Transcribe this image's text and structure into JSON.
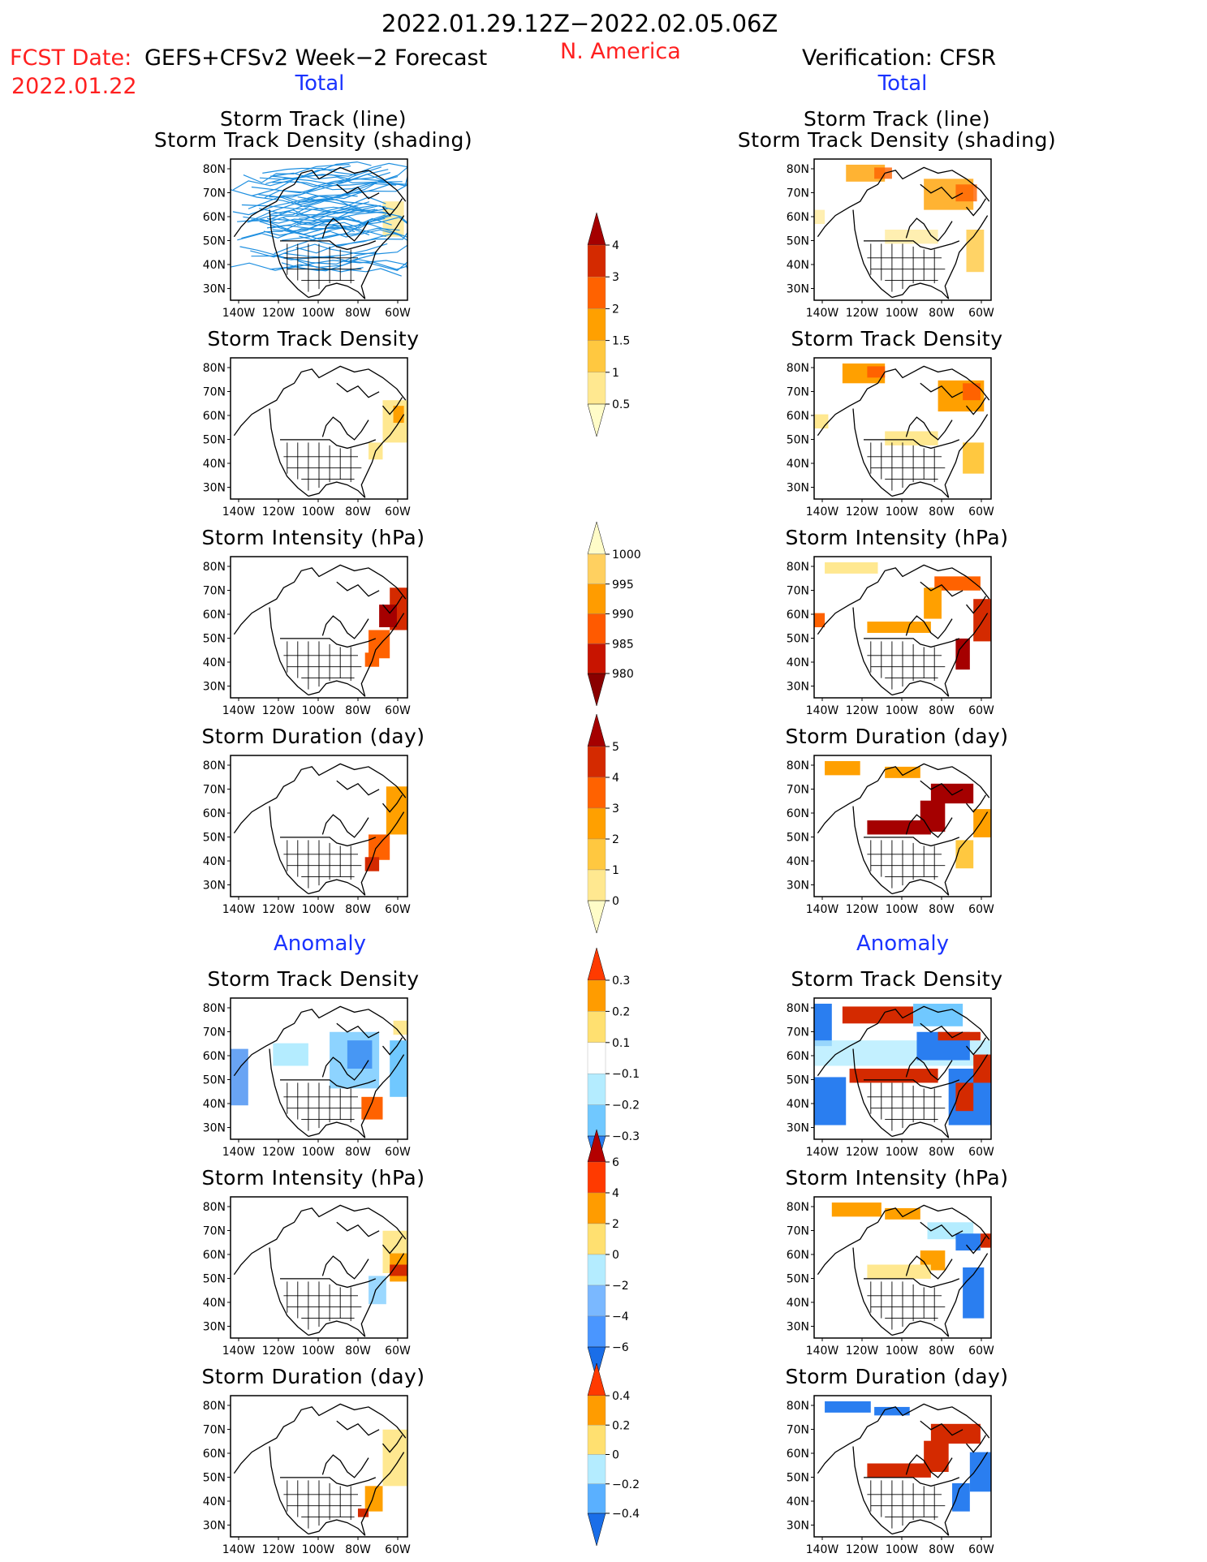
{
  "header": {
    "date_range": "2022.01.29.12Z−2022.02.05.06Z",
    "region": "N. America",
    "fcst_label": "FCST Date:",
    "fcst_model": "GEFS+CFSv2 Week−2 Forecast",
    "fcst_date": "2022.01.22",
    "verification": "Verification: CFSR"
  },
  "sections": {
    "left_total": "Total",
    "right_total": "Total",
    "left_anomaly": "Anomaly",
    "right_anomaly": "Anomaly"
  },
  "panel_titles": {
    "track_line": "Storm Track (line)",
    "track_shading": "Storm Track Density (shading)",
    "density": "Storm Track Density",
    "intensity": "Storm Intensity (hPa)",
    "duration": "Storm Duration (day)"
  },
  "axes": {
    "lat_labels": [
      "80N",
      "70N",
      "60N",
      "50N",
      "40N",
      "30N"
    ],
    "lon_labels": [
      "140W",
      "120W",
      "100W",
      "80W",
      "60W"
    ]
  },
  "colorbars": [
    {
      "id": "density-total",
      "labels": [
        "4",
        "3",
        "2",
        "1.5",
        "1",
        "0.5"
      ],
      "colors": [
        "#a50000",
        "#d42a00",
        "#ff6200",
        "#ffa000",
        "#ffc840",
        "#ffe890",
        "#fffcc8"
      ]
    },
    {
      "id": "intensity-total",
      "labels": [
        "1000",
        "995",
        "990",
        "985",
        "980"
      ],
      "colors": [
        "#fffcc8",
        "#ffd060",
        "#ff9c00",
        "#ff5a00",
        "#c81400",
        "#8a0000"
      ]
    },
    {
      "id": "duration-total",
      "labels": [
        "5",
        "4",
        "3",
        "2",
        "1",
        "0"
      ],
      "colors": [
        "#a50000",
        "#d42a00",
        "#ff6200",
        "#ffa000",
        "#ffc840",
        "#ffe890",
        "#fffcc8"
      ]
    },
    {
      "id": "density-anom",
      "labels": [
        "0.3",
        "0.2",
        "0.1",
        "−0.1",
        "−0.2",
        "−0.3"
      ],
      "colors": [
        "#ff3a00",
        "#ff9c00",
        "#ffe070",
        "#ffffff",
        "#b4ecff",
        "#70c8ff",
        "#2a7ef0"
      ]
    },
    {
      "id": "intensity-anom",
      "labels": [
        "6",
        "4",
        "2",
        "0",
        "−2",
        "−4",
        "−6"
      ],
      "colors": [
        "#b40000",
        "#ff3a00",
        "#ff9c00",
        "#ffe070",
        "#b4ecff",
        "#7ab8ff",
        "#4a96ff",
        "#1a6ee8"
      ]
    },
    {
      "id": "duration-anom",
      "labels": [
        "0.4",
        "0.2",
        "0",
        "−0.2",
        "−0.4"
      ],
      "colors": [
        "#ff3a00",
        "#ff9c00",
        "#ffe070",
        "#b4ecff",
        "#5ab0ff",
        "#1a6ee8"
      ]
    }
  ],
  "colors": {
    "title_red": "#ff2020",
    "section_blue": "#1a33ff",
    "track_line": "#1e8fe0"
  }
}
